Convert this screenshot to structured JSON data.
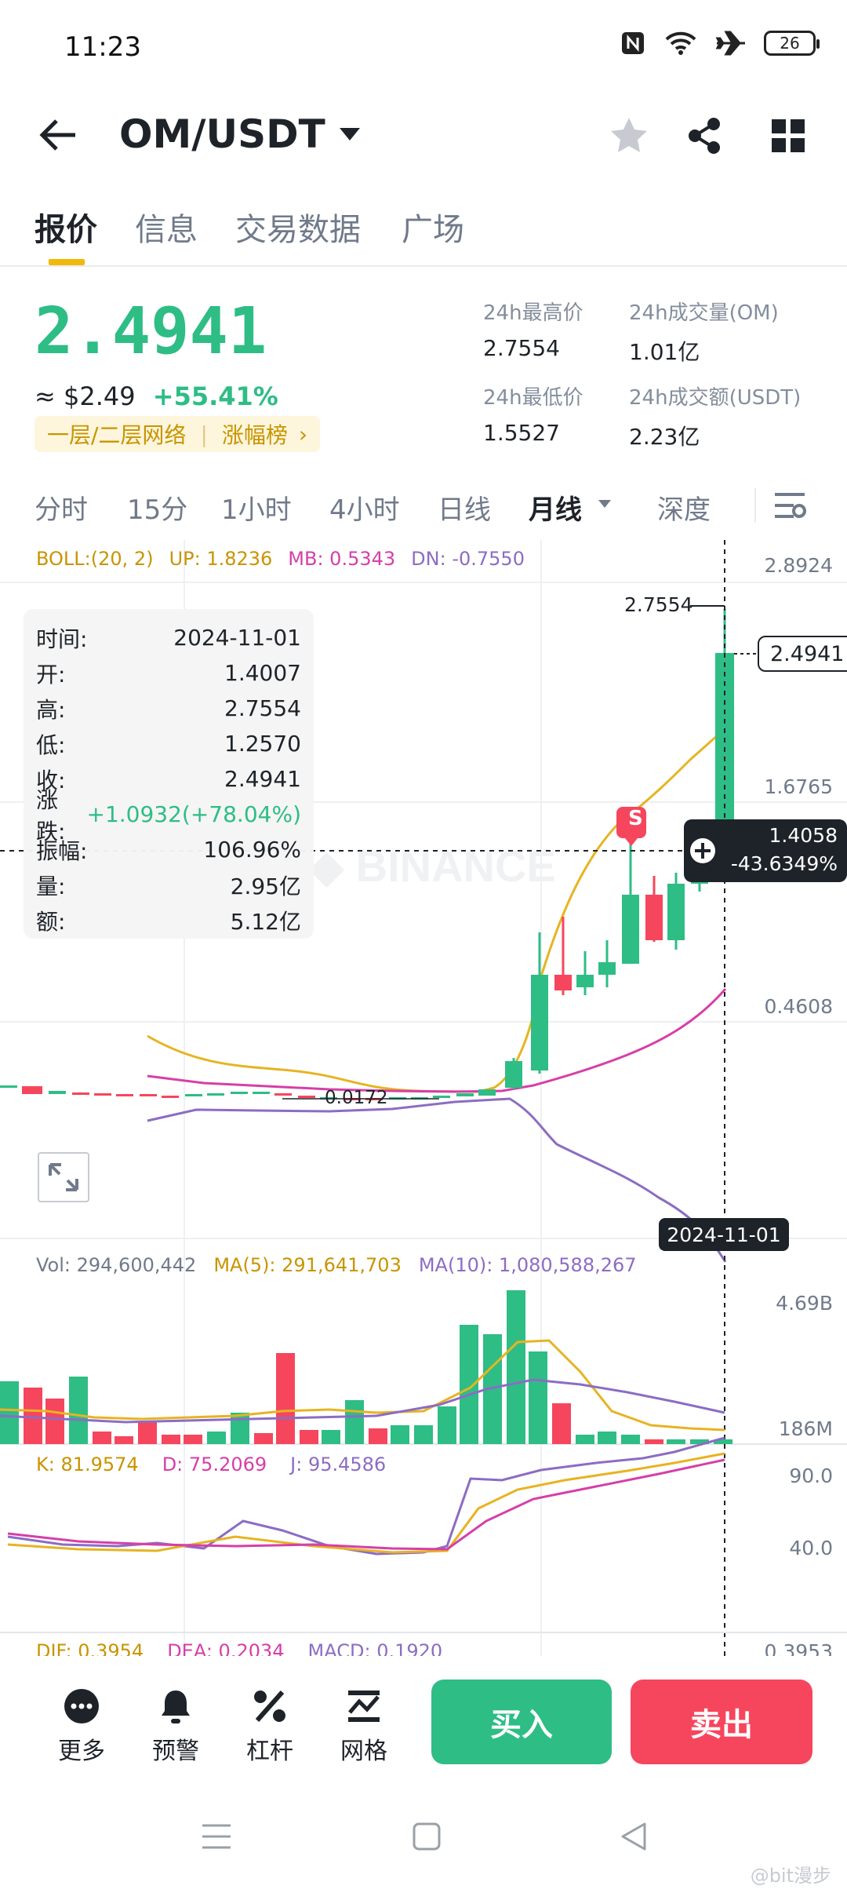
{
  "status_bar": {
    "time": "11:23",
    "battery": "26"
  },
  "header": {
    "pair": "OM/USDT"
  },
  "tabs": [
    "报价",
    "信息",
    "交易数据",
    "广场"
  ],
  "quote": {
    "price": "2.4941",
    "usd_price": "≈ $2.49",
    "change_pct": "+55.41%",
    "tag_network": "一层/二层网络",
    "tag_rank": "涨幅榜",
    "high_label": "24h最高价",
    "high_value": "2.7554",
    "low_label": "24h最低价",
    "low_value": "1.5527",
    "vol_om_label": "24h成交量(OM)",
    "vol_om_value": "1.01亿",
    "vol_usdt_label": "24h成交额(USDT)",
    "vol_usdt_value": "2.23亿"
  },
  "kline_tabs": [
    "分时",
    "15分",
    "1小时",
    "4小时",
    "日线",
    "月线",
    "深度"
  ],
  "colors": {
    "up": "#2ebd85",
    "down": "#f6465d",
    "accent": "#f0b90b",
    "boll_mb": "#d63fa8",
    "boll_dn": "#8c6cc4",
    "ma5": "#e6b422",
    "kdj_j": "#8c6cc4"
  },
  "chart_main": {
    "boll_label": "BOLL:(20, 2)",
    "up_label": "UP: 1.8236",
    "mb_label": "MB: 0.5343",
    "dn_label": "DN: -0.7550",
    "axis": [
      "2.8924",
      "1.6765",
      "0.4608"
    ],
    "high_marker": "2.7554",
    "low_marker": "0.0172",
    "current_price": "2.4941",
    "crosshair_price": "1.4058",
    "crosshair_pct": "-43.6349%",
    "crosshair_date": "2024-11-01",
    "signal": "S",
    "watermark": "BINANCE"
  },
  "tooltip": {
    "rows": [
      {
        "label": "时间:",
        "value": "2024-11-01"
      },
      {
        "label": "开:",
        "value": "1.4007"
      },
      {
        "label": "高:",
        "value": "2.7554"
      },
      {
        "label": "低:",
        "value": "1.2570"
      },
      {
        "label": "收:",
        "value": "2.4941"
      },
      {
        "label": "涨跌:",
        "value": "+1.0932(+78.04%)"
      },
      {
        "label": "振幅:",
        "value": "106.96%"
      },
      {
        "label": "量:",
        "value": "2.95亿"
      },
      {
        "label": "额:",
        "value": "5.12亿"
      }
    ]
  },
  "chart_volume": {
    "vol_label": "Vol: 294,600,442",
    "ma5_label": "MA(5): 291,641,703",
    "ma10_label": "MA(10): 1,080,588,267",
    "axis": [
      "4.69B",
      "186M"
    ]
  },
  "chart_kdj": {
    "k_label": "K: 81.9574",
    "d_label": "D: 75.2069",
    "j_label": "J: 95.4586",
    "axis": [
      "90.0",
      "40.0"
    ]
  },
  "chart_macd": {
    "dif_label": "DIF: 0.3954",
    "dea_label": "DEA: 0.2034",
    "macd_label": "MACD: 0.1920",
    "axis": "0.3953"
  },
  "bottom": {
    "more": "更多",
    "alert": "预警",
    "leverage": "杠杆",
    "grid": "网格",
    "buy": "买入",
    "sell": "卖出"
  },
  "watermark_corner": "@bit漫步"
}
